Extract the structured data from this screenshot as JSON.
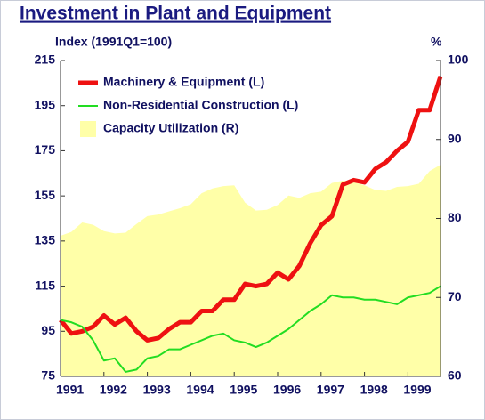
{
  "chart_data": {
    "type": "line",
    "title": "Investment in Plant and Equipment",
    "y_label": "Index (1991Q1=100)",
    "y2_label": "%",
    "x": [
      1991,
      1991.25,
      1991.5,
      1991.75,
      1992,
      1992.25,
      1992.5,
      1992.75,
      1993,
      1993.25,
      1993.5,
      1993.75,
      1994,
      1994.25,
      1994.5,
      1994.75,
      1995,
      1995.25,
      1995.5,
      1995.75,
      1996,
      1996.25,
      1996.5,
      1996.75,
      1997,
      1997.25,
      1997.5,
      1997.75,
      1998,
      1998.25,
      1998.5,
      1998.75,
      1999,
      1999.25,
      1999.5,
      1999.75
    ],
    "series": [
      {
        "name": "Capacity Utilization (R)",
        "color": "#ffffa8",
        "kind": "area",
        "axis": "y2",
        "values": [
          77.8,
          78.3,
          79.5,
          79.2,
          78.4,
          78.1,
          78.2,
          79.3,
          80.3,
          80.5,
          80.9,
          81.3,
          81.8,
          83.2,
          83.8,
          84.1,
          84.2,
          82.0,
          81.0,
          81.1,
          81.7,
          82.9,
          82.6,
          83.2,
          83.4,
          84.5,
          84.8,
          84.6,
          84.2,
          83.6,
          83.5,
          84.0,
          84.1,
          84.4,
          86.0,
          86.8
        ]
      },
      {
        "name": "Machinery & Equipment (L)",
        "color": "#ee1111",
        "kind": "line",
        "width": 5,
        "values": [
          100,
          94,
          95,
          97,
          102,
          98,
          101,
          95,
          91,
          92,
          96,
          99,
          99,
          104,
          104,
          109,
          109,
          116,
          115,
          116,
          121,
          118,
          124,
          134,
          142,
          146,
          160,
          162,
          161,
          167,
          170,
          175,
          179,
          193,
          193,
          208
        ]
      },
      {
        "name": "Non-Residential Construction (L)",
        "color": "#22dd22",
        "kind": "line",
        "width": 2,
        "values": [
          100,
          99,
          97,
          91,
          82,
          83,
          77,
          78,
          83,
          84,
          87,
          87,
          89,
          91,
          93,
          94,
          91,
          90,
          88,
          90,
          93,
          96,
          100,
          104,
          107,
          111,
          110,
          110,
          109,
          109,
          108,
          107,
          110,
          111,
          112,
          115
        ]
      }
    ],
    "legend_order": [
      1,
      2,
      0
    ],
    "xlim": [
      1991,
      1999.75
    ],
    "xticks": [
      1991,
      1992,
      1993,
      1994,
      1995,
      1996,
      1997,
      1998,
      1999
    ],
    "ylim": [
      75,
      215
    ],
    "yticks": [
      75,
      95,
      115,
      135,
      155,
      175,
      195,
      215
    ],
    "y2lim": [
      60,
      100
    ],
    "y2ticks": [
      60,
      70,
      80,
      90,
      100
    ]
  }
}
